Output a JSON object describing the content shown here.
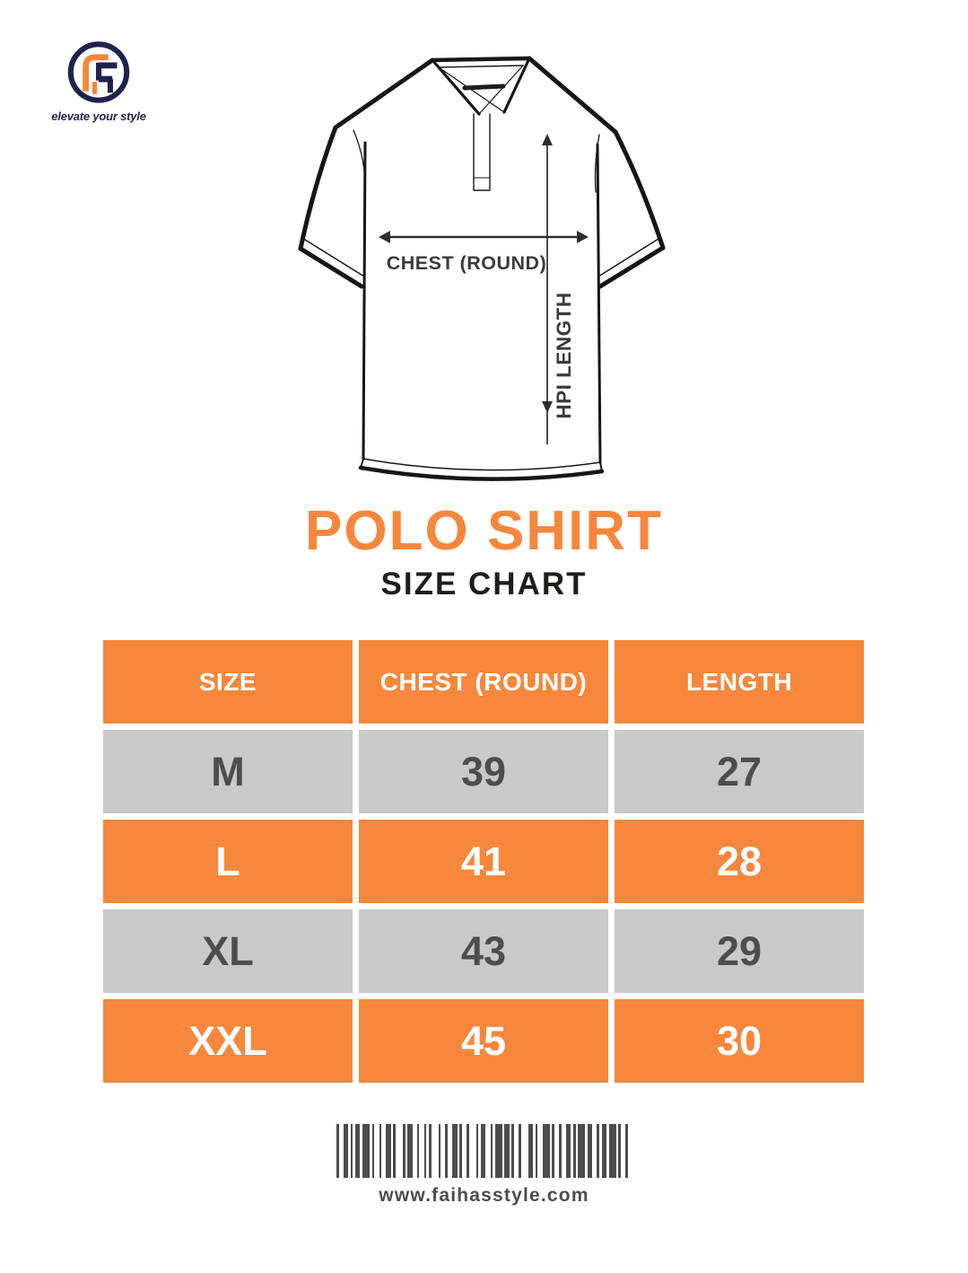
{
  "page": {
    "title": "POLO SHIRT",
    "subtitle": "SIZE CHART"
  },
  "brand": {
    "monogram": "FS",
    "tagline": "elevate your style"
  },
  "diagram": {
    "chest_label": "CHEST (ROUND)",
    "length_label": "HPI LENGTH"
  },
  "size_table": {
    "columns": [
      "SIZE",
      "CHEST (ROUND)",
      "LENGTH"
    ],
    "rows": [
      [
        "M",
        "39",
        "27"
      ],
      [
        "L",
        "41",
        "28"
      ],
      [
        "XL",
        "43",
        "29"
      ],
      [
        "XXL",
        "45",
        "30"
      ]
    ]
  },
  "footer": {
    "website": "www.faihasstyle.com",
    "barcode_pattern": "1221112131121221131122121113121221121311221131211213211231121221113122112131121"
  },
  "colors": {
    "orange": "#F6873C",
    "row_gray": "#C9C9C9",
    "row_text_dark": "#4D4D4D",
    "navy": "#20224B",
    "line_dark": "#161616",
    "footer_text": "#4C4C4E"
  }
}
